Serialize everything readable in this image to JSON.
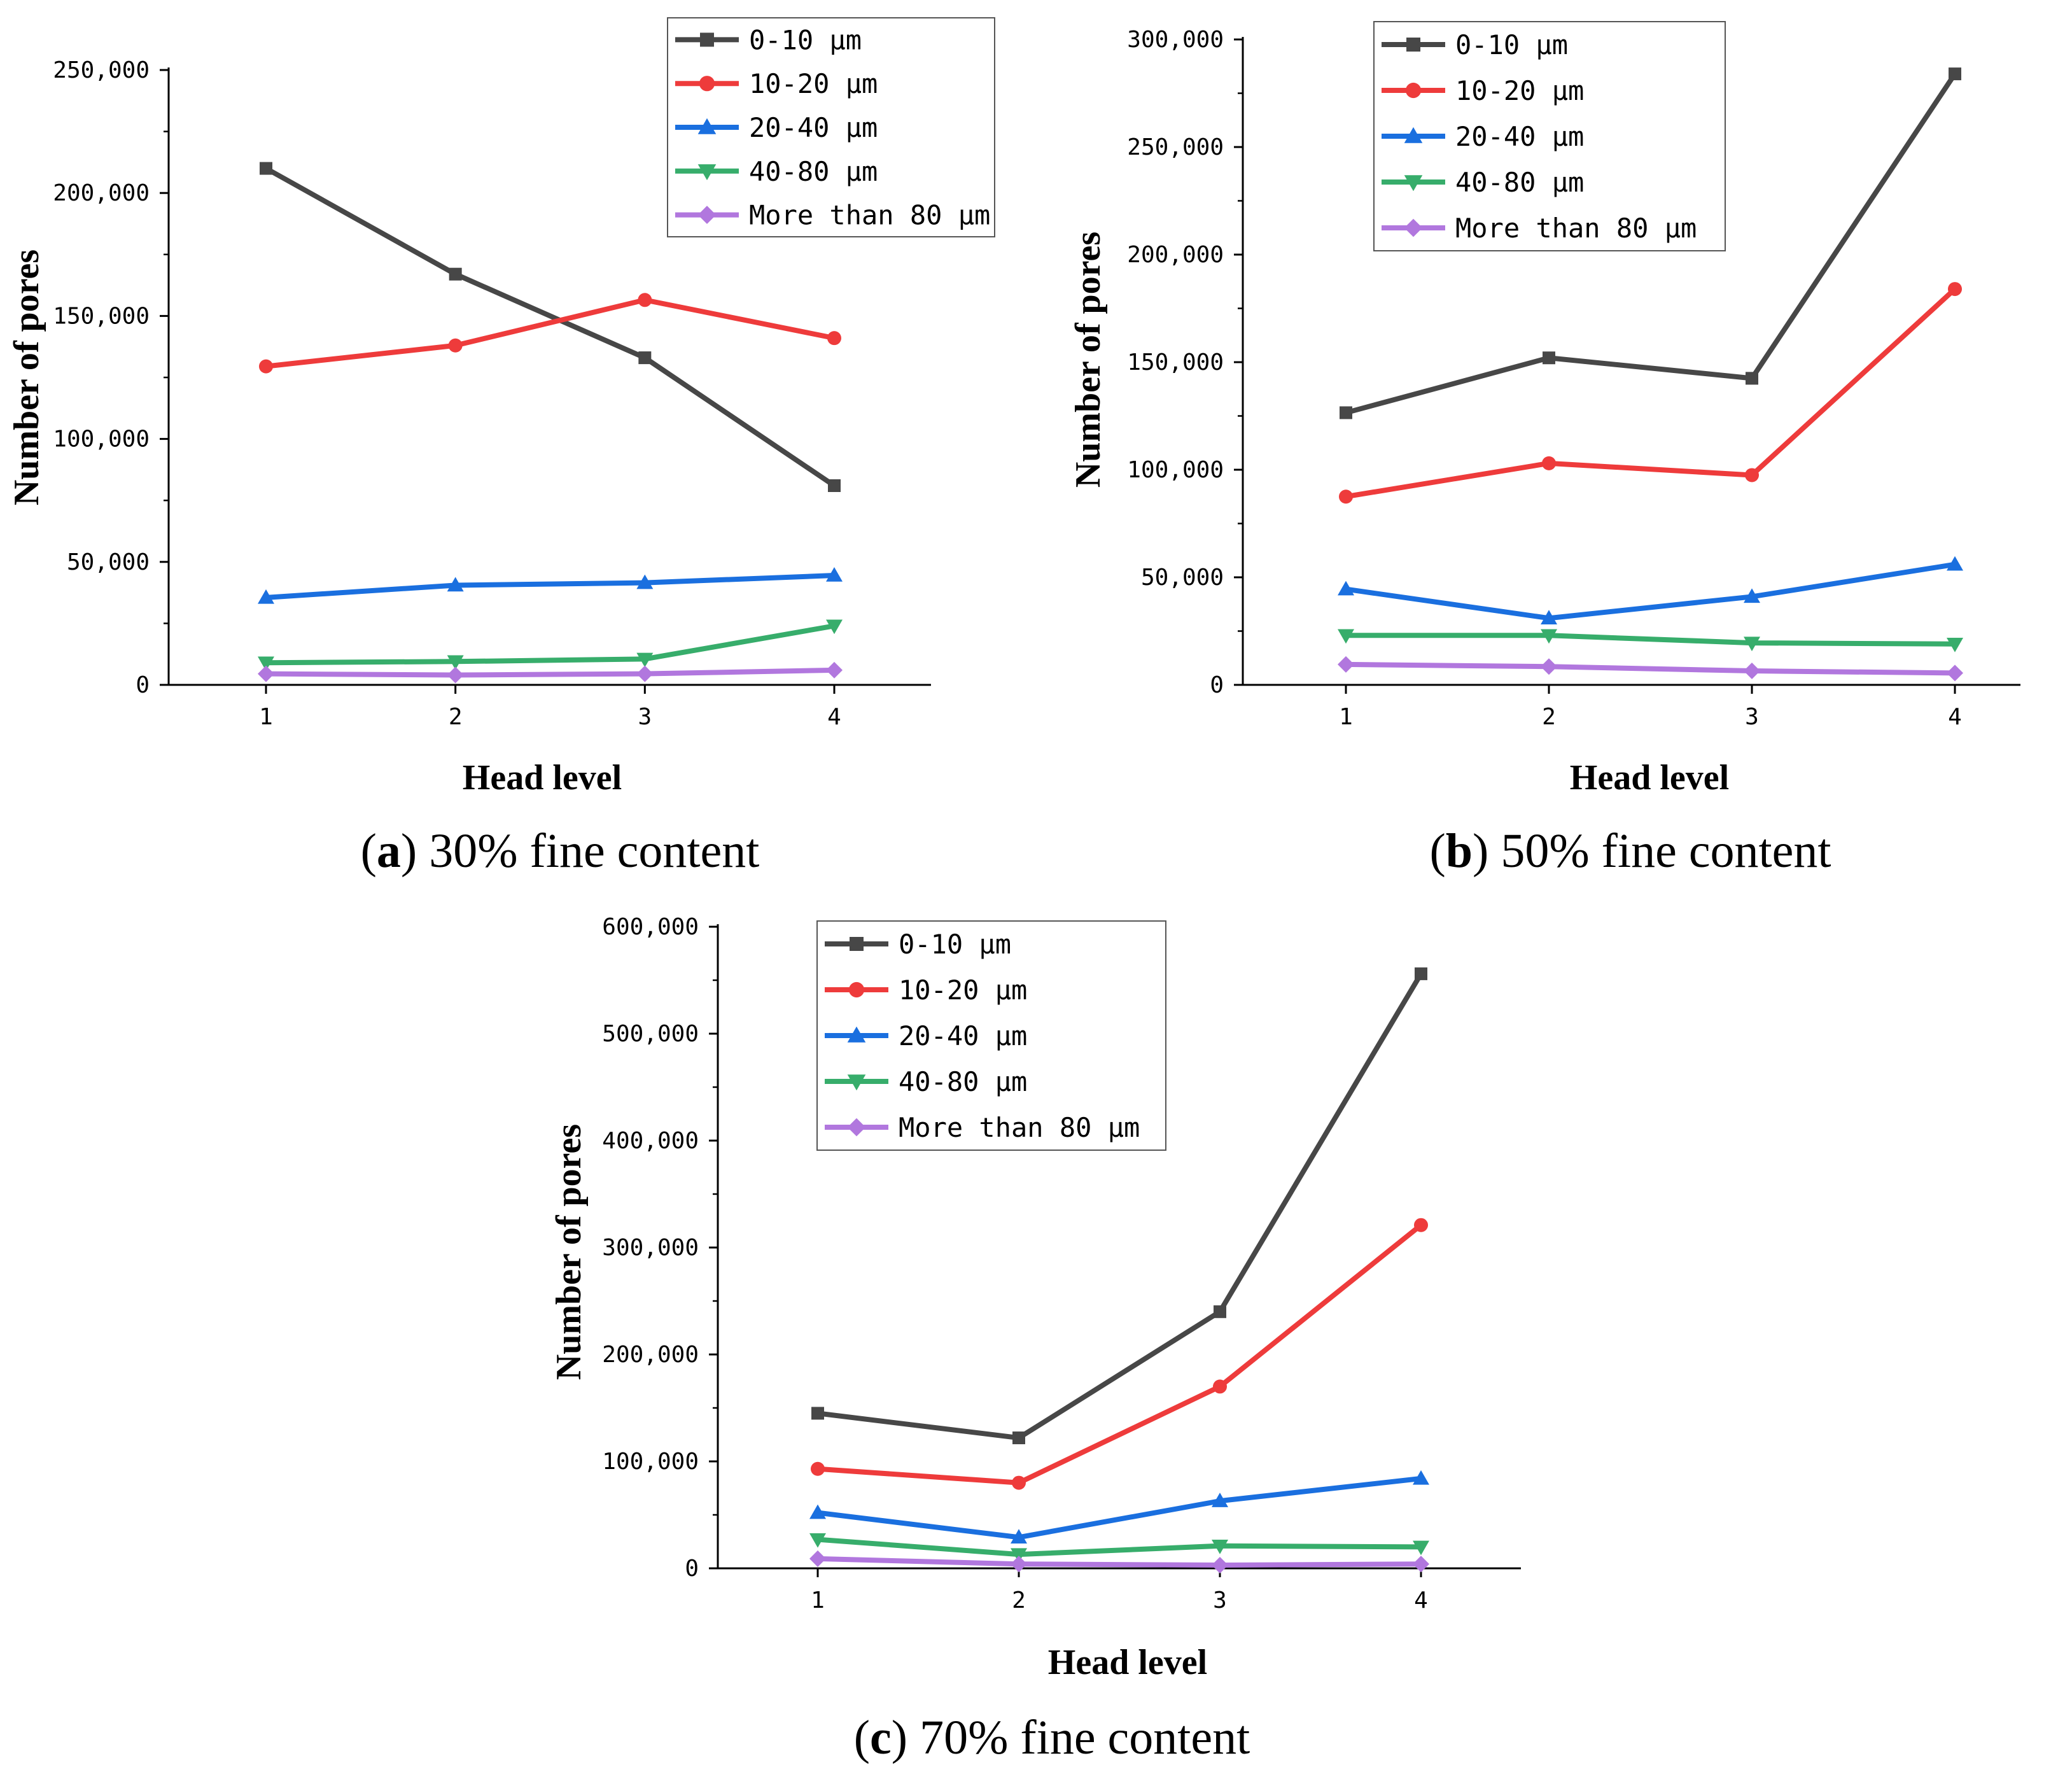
{
  "chart_data": [
    {
      "panel": "a",
      "type": "line",
      "caption_letter": "a",
      "caption_text": " 30% fine content",
      "xlabel": "Head level",
      "ylabel": "Number of pores",
      "x": [
        1,
        2,
        3,
        4
      ],
      "xticks": [
        "1",
        "2",
        "3",
        "4"
      ],
      "ylim": [
        0,
        250000
      ],
      "yticks": [
        "0",
        "50,000",
        "100,000",
        "150,000",
        "200,000",
        "250,000"
      ],
      "legend": "top-right",
      "series": [
        {
          "name": "0-10 μm",
          "color": "#474747",
          "marker": "square",
          "values": [
            210000,
            167000,
            133000,
            81000
          ]
        },
        {
          "name": "10-20 μm",
          "color": "#ee3b3b",
          "marker": "circle",
          "values": [
            129500,
            138000,
            156500,
            141000
          ]
        },
        {
          "name": "20-40 μm",
          "color": "#1a6fdf",
          "marker": "triangle-up",
          "values": [
            35500,
            40500,
            41500,
            44500
          ]
        },
        {
          "name": "40-80 μm",
          "color": "#37ad6b",
          "marker": "triangle-down",
          "values": [
            9000,
            9500,
            10500,
            24000
          ]
        },
        {
          "name": "More than 80 μm",
          "color": "#b177de",
          "marker": "diamond",
          "values": [
            4500,
            4000,
            4500,
            6000
          ]
        }
      ]
    },
    {
      "panel": "b",
      "type": "line",
      "caption_letter": "b",
      "caption_text": " 50% fine content",
      "xlabel": "Head level",
      "ylabel": "Number of pores",
      "x": [
        1,
        2,
        3,
        4
      ],
      "xticks": [
        "1",
        "2",
        "3",
        "4"
      ],
      "ylim": [
        0,
        300000
      ],
      "yticks": [
        "0",
        "50,000",
        "100,000",
        "150,000",
        "200,000",
        "250,000",
        "300,000"
      ],
      "legend": "top-right",
      "series": [
        {
          "name": "0-10 μm",
          "color": "#474747",
          "marker": "square",
          "values": [
            126500,
            152000,
            142500,
            284000
          ]
        },
        {
          "name": "10-20 μm",
          "color": "#ee3b3b",
          "marker": "circle",
          "values": [
            87500,
            103000,
            97500,
            184000
          ]
        },
        {
          "name": "20-40 μm",
          "color": "#1a6fdf",
          "marker": "triangle-up",
          "values": [
            44500,
            31000,
            41000,
            56000
          ]
        },
        {
          "name": "40-80 μm",
          "color": "#37ad6b",
          "marker": "triangle-down",
          "values": [
            23000,
            23000,
            19500,
            19000
          ]
        },
        {
          "name": "More than 80 μm",
          "color": "#b177de",
          "marker": "diamond",
          "values": [
            9500,
            8500,
            6500,
            5500
          ]
        }
      ]
    },
    {
      "panel": "c",
      "type": "line",
      "caption_letter": "c",
      "caption_text": " 70% fine content",
      "xlabel": "Head level",
      "ylabel": "Number of pores",
      "x": [
        1,
        2,
        3,
        4
      ],
      "xticks": [
        "1",
        "2",
        "3",
        "4"
      ],
      "ylim": [
        0,
        600000
      ],
      "yticks": [
        "0",
        "100,000",
        "200,000",
        "300,000",
        "400,000",
        "500,000",
        "600,000"
      ],
      "legend": "top-right",
      "series": [
        {
          "name": "0-10 μm",
          "color": "#474747",
          "marker": "square",
          "values": [
            145000,
            122000,
            240000,
            556000
          ]
        },
        {
          "name": "10-20 μm",
          "color": "#ee3b3b",
          "marker": "circle",
          "values": [
            93000,
            80000,
            170000,
            321000
          ]
        },
        {
          "name": "20-40 μm",
          "color": "#1a6fdf",
          "marker": "triangle-up",
          "values": [
            52000,
            29000,
            63000,
            84000
          ]
        },
        {
          "name": "40-80 μm",
          "color": "#37ad6b",
          "marker": "triangle-down",
          "values": [
            27000,
            13000,
            21000,
            20000
          ]
        },
        {
          "name": "More than 80 μm",
          "color": "#b177de",
          "marker": "diamond",
          "values": [
            9000,
            4000,
            3000,
            4000
          ]
        }
      ]
    }
  ]
}
